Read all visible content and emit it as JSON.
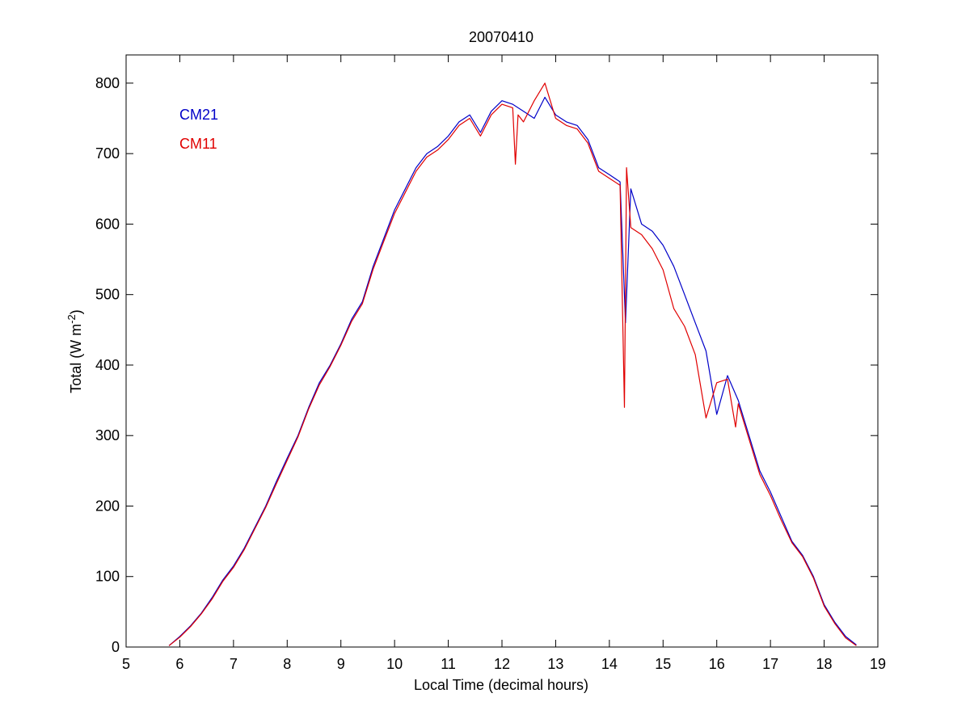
{
  "chart_data": {
    "type": "line",
    "title": "20070410",
    "xlabel": "Local Time (decimal hours)",
    "ylabel": {
      "main": "Total (W m",
      "sup": "-2",
      "close": ")"
    },
    "xlim": [
      5,
      19
    ],
    "ylim": [
      0,
      840
    ],
    "xticks": [
      5,
      6,
      7,
      8,
      9,
      10,
      11,
      12,
      13,
      14,
      15,
      16,
      17,
      18,
      19
    ],
    "yticks": [
      0,
      100,
      200,
      300,
      400,
      500,
      600,
      700,
      800
    ],
    "grid": false,
    "legend_placement": "top-left",
    "series": [
      {
        "name": "CM21",
        "color": "#0000c8",
        "x": [
          5.8,
          6.0,
          6.2,
          6.4,
          6.6,
          6.8,
          7.0,
          7.2,
          7.4,
          7.6,
          7.8,
          8.0,
          8.2,
          8.4,
          8.6,
          8.8,
          9.0,
          9.2,
          9.4,
          9.6,
          9.8,
          10.0,
          10.2,
          10.4,
          10.6,
          10.8,
          11.0,
          11.2,
          11.4,
          11.6,
          11.8,
          12.0,
          12.2,
          12.4,
          12.6,
          12.8,
          13.0,
          13.2,
          13.4,
          13.6,
          13.8,
          14.0,
          14.2,
          14.3,
          14.4,
          14.6,
          14.8,
          15.0,
          15.2,
          15.4,
          15.6,
          15.8,
          16.0,
          16.2,
          16.4,
          16.6,
          16.8,
          17.0,
          17.2,
          17.4,
          17.6,
          17.8,
          18.0,
          18.2,
          18.4,
          18.6
        ],
        "y": [
          2,
          15,
          30,
          48,
          70,
          95,
          115,
          140,
          170,
          200,
          235,
          268,
          300,
          340,
          375,
          400,
          430,
          465,
          490,
          540,
          580,
          620,
          650,
          680,
          700,
          710,
          725,
          745,
          755,
          730,
          760,
          775,
          770,
          760,
          750,
          780,
          755,
          745,
          740,
          720,
          680,
          670,
          660,
          460,
          650,
          600,
          590,
          570,
          540,
          500,
          460,
          420,
          330,
          385,
          350,
          300,
          250,
          220,
          185,
          150,
          130,
          100,
          60,
          35,
          15,
          3
        ]
      },
      {
        "name": "CM11",
        "color": "#e00000",
        "x": [
          5.8,
          6.0,
          6.2,
          6.4,
          6.6,
          6.8,
          7.0,
          7.2,
          7.4,
          7.6,
          7.8,
          8.0,
          8.2,
          8.4,
          8.6,
          8.8,
          9.0,
          9.2,
          9.4,
          9.6,
          9.8,
          10.0,
          10.2,
          10.4,
          10.6,
          10.8,
          11.0,
          11.2,
          11.4,
          11.6,
          11.8,
          12.0,
          12.2,
          12.25,
          12.3,
          12.4,
          12.6,
          12.8,
          13.0,
          13.2,
          13.4,
          13.6,
          13.8,
          14.0,
          14.2,
          14.28,
          14.32,
          14.4,
          14.6,
          14.8,
          15.0,
          15.2,
          15.4,
          15.6,
          15.8,
          16.0,
          16.2,
          16.35,
          16.4,
          16.6,
          16.8,
          17.0,
          17.2,
          17.4,
          17.6,
          17.8,
          18.0,
          18.2,
          18.4,
          18.6
        ],
        "y": [
          2,
          14,
          29,
          47,
          68,
          93,
          113,
          138,
          168,
          198,
          232,
          265,
          298,
          338,
          372,
          398,
          428,
          462,
          487,
          536,
          576,
          615,
          645,
          675,
          695,
          705,
          720,
          740,
          750,
          725,
          755,
          770,
          765,
          685,
          755,
          745,
          775,
          800,
          750,
          740,
          735,
          715,
          675,
          665,
          655,
          340,
          680,
          595,
          585,
          565,
          535,
          480,
          455,
          415,
          325,
          375,
          380,
          312,
          345,
          295,
          245,
          215,
          180,
          148,
          128,
          98,
          58,
          33,
          13,
          2
        ]
      }
    ]
  }
}
